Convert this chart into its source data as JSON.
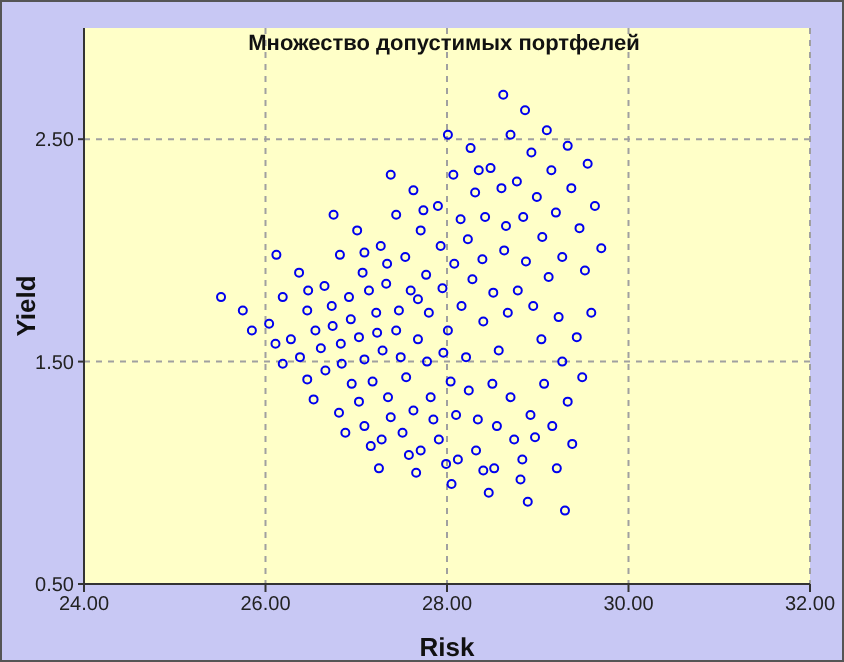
{
  "chart_data": {
    "type": "scatter",
    "title": "Множество допустимых портфелей",
    "xlabel": "Risk",
    "ylabel": "Yield",
    "x": [
      25.51,
      25.75,
      25.85,
      26.04,
      26.12,
      26.11,
      26.19,
      26.19,
      26.28,
      26.37,
      26.38,
      26.46,
      26.47,
      26.46,
      26.53,
      26.55,
      26.61,
      26.65,
      26.66,
      26.73,
      26.74,
      26.75,
      26.81,
      26.82,
      26.83,
      26.84,
      26.88,
      26.92,
      26.94,
      26.95,
      27.01,
      27.03,
      27.03,
      27.07,
      27.09,
      27.09,
      27.09,
      27.14,
      27.16,
      27.18,
      27.22,
      27.23,
      27.25,
      27.27,
      27.29,
      27.28,
      27.33,
      27.34,
      27.35,
      27.38,
      27.38,
      27.44,
      27.44,
      27.47,
      27.49,
      27.54,
      27.55,
      27.51,
      27.6,
      27.58,
      27.63,
      27.63,
      27.66,
      27.68,
      27.68,
      27.71,
      27.71,
      27.74,
      27.77,
      27.78,
      27.8,
      27.82,
      27.85,
      27.9,
      27.91,
      27.93,
      27.95,
      27.96,
      27.99,
      28.01,
      28.01,
      28.04,
      28.05,
      28.07,
      28.08,
      28.1,
      28.12,
      28.15,
      28.16,
      28.21,
      28.23,
      28.24,
      28.26,
      28.28,
      28.31,
      28.32,
      28.34,
      28.35,
      28.39,
      28.4,
      28.4,
      28.42,
      28.46,
      28.48,
      28.5,
      28.52,
      28.51,
      28.55,
      28.57,
      28.6,
      28.62,
      28.63,
      28.65,
      28.67,
      28.7,
      28.7,
      28.74,
      28.77,
      28.78,
      28.81,
      28.83,
      28.84,
      28.86,
      28.87,
      28.89,
      28.92,
      28.93,
      28.95,
      28.97,
      28.99,
      29.04,
      29.05,
      29.07,
      29.1,
      29.12,
      29.15,
      29.16,
      29.2,
      29.21,
      29.23,
      29.27,
      29.27,
      29.3,
      29.33,
      29.33,
      29.37,
      29.38,
      29.43,
      29.46,
      29.49,
      29.52,
      29.55,
      29.59,
      29.63,
      29.7
    ],
    "series": [
      {
        "color": "#0000ee",
        "values": [
          1.79,
          1.73,
          1.64,
          1.67,
          1.98,
          1.58,
          1.79,
          1.49,
          1.6,
          1.9,
          1.52,
          1.42,
          1.82,
          1.73,
          1.33,
          1.64,
          1.56,
          1.84,
          1.46,
          1.75,
          1.66,
          2.16,
          1.27,
          1.98,
          1.58,
          1.49,
          1.18,
          1.79,
          1.69,
          1.4,
          2.09,
          1.61,
          1.32,
          1.9,
          1.99,
          1.51,
          1.21,
          1.82,
          1.12,
          1.41,
          1.72,
          1.63,
          1.02,
          2.02,
          1.55,
          1.15,
          1.85,
          1.94,
          1.34,
          2.34,
          1.25,
          2.16,
          1.64,
          1.73,
          1.52,
          1.97,
          1.43,
          1.18,
          1.82,
          1.08,
          2.27,
          1.28,
          1.0,
          1.78,
          1.6,
          2.09,
          1.1,
          2.18,
          1.89,
          1.5,
          1.72,
          1.34,
          1.24,
          2.2,
          1.15,
          2.02,
          1.83,
          1.54,
          1.04,
          2.52,
          1.64,
          1.41,
          0.95,
          2.34,
          1.94,
          1.26,
          1.06,
          2.14,
          1.75,
          1.52,
          2.05,
          1.37,
          2.46,
          1.87,
          2.26,
          1.1,
          1.24,
          2.36,
          1.96,
          1.01,
          1.68,
          2.15,
          0.91,
          2.37,
          1.4,
          1.02,
          1.81,
          1.21,
          1.55,
          2.28,
          2.7,
          2.0,
          2.11,
          1.72,
          2.52,
          1.34,
          1.15,
          2.31,
          1.82,
          0.97,
          1.06,
          2.15,
          2.63,
          1.95,
          0.87,
          1.26,
          2.44,
          1.75,
          1.16,
          2.24,
          1.6,
          2.06,
          1.4,
          2.54,
          1.88,
          2.36,
          1.21,
          2.17,
          1.02,
          1.7,
          1.97,
          1.5,
          0.83,
          2.47,
          1.32,
          2.28,
          1.13,
          1.61,
          2.1,
          1.43,
          1.91,
          2.39,
          1.72,
          2.2,
          2.01
        ]
      }
    ],
    "xlim": [
      24,
      32
    ],
    "xticks": [
      {
        "value": 24,
        "label": "24.00"
      },
      {
        "value": 26,
        "label": "26.00"
      },
      {
        "value": 28,
        "label": "28.00"
      },
      {
        "value": 30,
        "label": "30.00"
      },
      {
        "value": 32,
        "label": "32.00"
      }
    ],
    "ylim": [
      0.5,
      3.0
    ],
    "yticks": [
      {
        "value": 0.5,
        "label": "0.50"
      },
      {
        "value": 1.5,
        "label": "1.50"
      },
      {
        "value": 2.5,
        "label": "2.50"
      }
    ],
    "grid": true,
    "marker": "circle"
  }
}
